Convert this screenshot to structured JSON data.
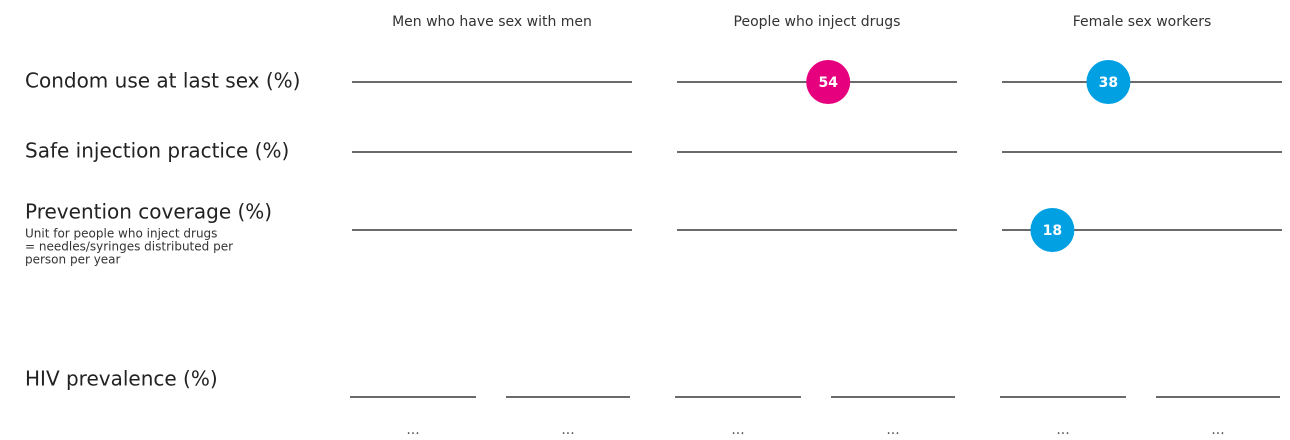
{
  "chart_data": {
    "type": "dot",
    "groups": [
      "Men who have sex with men",
      "People who inject drugs",
      "Female sex workers"
    ],
    "rows": [
      "Condom use at last sex (%)",
      "Safe injection practice (%)",
      "Prevention coverage (%)",
      "HIV prevalence (%)"
    ],
    "note": [
      "Unit for people who inject drugs",
      "= needles/syringes distributed per",
      "person per year"
    ],
    "values": [
      [
        null,
        54,
        38
      ],
      [
        null,
        null,
        null
      ],
      [
        null,
        null,
        18
      ]
    ],
    "colors": [
      null,
      "#e6007e",
      "#00a0e3"
    ],
    "xlim": [
      0,
      100
    ],
    "prevalence_labels": [
      "...",
      "...",
      "...",
      "...",
      "...",
      "..."
    ]
  }
}
